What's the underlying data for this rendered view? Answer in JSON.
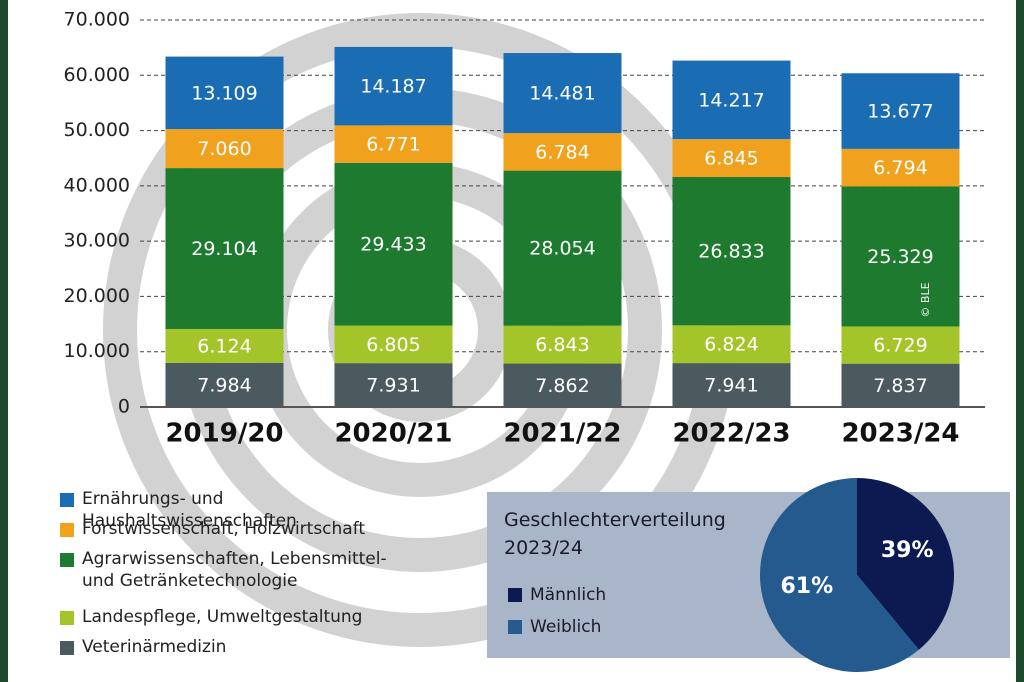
{
  "chart_data": [
    {
      "type": "stacked-bar",
      "categories": [
        "2019/20",
        "2020/21",
        "2021/22",
        "2022/23",
        "2023/24"
      ],
      "series": [
        {
          "name": "Veterinärmedizin",
          "color": "#4a5a5e",
          "values": [
            7984,
            7931,
            7862,
            7941,
            7837
          ],
          "value_labels": [
            "7.984",
            "7.931",
            "7.862",
            "7.941",
            "7.837"
          ]
        },
        {
          "name": "Landespflege, Umweltgestaltung",
          "color": "#a3c52a",
          "values": [
            6124,
            6805,
            6843,
            6824,
            6729
          ],
          "value_labels": [
            "6.124",
            "6.805",
            "6.843",
            "6.824",
            "6.729"
          ]
        },
        {
          "name": "Agrarwissenschaften, Lebensmittel- und Getränketechnologie",
          "color": "#1e7a2e",
          "values": [
            29104,
            29433,
            28054,
            26833,
            25329
          ],
          "value_labels": [
            "29.104",
            "29.433",
            "28.054",
            "26.833",
            "25.329"
          ]
        },
        {
          "name": "Forstwissenschaft, Holzwirtschaft",
          "color": "#f0a21e",
          "values": [
            7060,
            6771,
            6784,
            6845,
            6794
          ],
          "value_labels": [
            "7.060",
            "6.771",
            "6.784",
            "6.845",
            "6.794"
          ]
        },
        {
          "name": "Ernährungs- und Haushaltswissenschaften",
          "color": "#1b6db3",
          "values": [
            13109,
            14187,
            14481,
            14217,
            13677
          ],
          "value_labels": [
            "13.109",
            "14.187",
            "14.481",
            "14.217",
            "13.677"
          ]
        }
      ],
      "ylim": [
        0,
        70000
      ],
      "yticks": [
        0,
        {
          "value": 10000,
          "label": "10.000"
        },
        {
          "value": 20000,
          "label": "20.000"
        },
        {
          "value": 30000,
          "label": "30.000"
        },
        {
          "value": 40000,
          "label": "40.000"
        },
        {
          "value": 50000,
          "label": "50.000"
        },
        {
          "value": 60000,
          "label": "60.000"
        },
        {
          "value": 70000,
          "label": "70.000"
        }
      ],
      "grid": true,
      "credit": "© BLE"
    },
    {
      "type": "pie",
      "title": "Geschlechterverteilung 2023/24",
      "categories": [
        "Männlich",
        "Weiblich"
      ],
      "colors": [
        "#0d1a52",
        "#255a8f"
      ],
      "values": [
        39,
        61
      ],
      "value_labels": [
        "39%",
        "61%"
      ]
    }
  ]
}
